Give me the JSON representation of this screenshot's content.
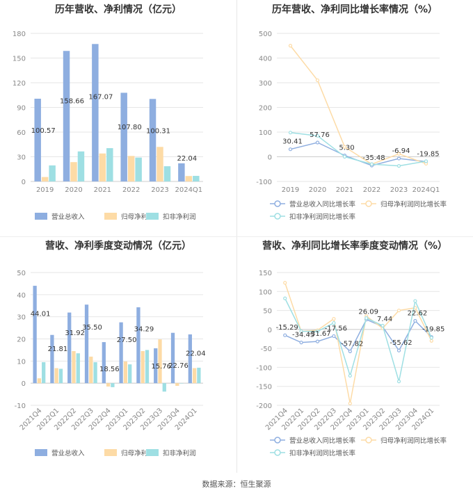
{
  "source": "数据来源：恒生聚源",
  "colors": {
    "rev": "#8eaee0",
    "np": "#fddba6",
    "dnp": "#9edfe3",
    "axis": "#888888",
    "grid": "#e6e6e6",
    "label": "#333333"
  },
  "chart_data": [
    {
      "id": "c1",
      "type": "bar",
      "title": "历年营收、净利情况（亿元）",
      "categories": [
        "2019",
        "2020",
        "2021",
        "2022",
        "2023",
        "2024Q1"
      ],
      "ylim": [
        0,
        180
      ],
      "yticks": [
        0,
        30,
        60,
        90,
        120,
        150,
        180
      ],
      "series": [
        {
          "name": "营业总收入",
          "colorKey": "rev",
          "values": [
            100.57,
            158.66,
            167.07,
            107.8,
            100.31,
            22.04
          ],
          "labels": [
            "100.57",
            "158.66",
            "167.07",
            "107.80",
            "100.31",
            "22.04"
          ]
        },
        {
          "name": "归母净利润",
          "colorKey": "np",
          "values": [
            5.4,
            23.5,
            34.0,
            31.0,
            42.0,
            6.6
          ]
        },
        {
          "name": "扣非净利润",
          "colorKey": "dnp",
          "values": [
            19.5,
            36.5,
            40.5,
            29.0,
            18.5,
            6.8
          ]
        }
      ]
    },
    {
      "id": "c2",
      "type": "line",
      "title": "历年营收、净利同比增长率情况（%）",
      "categories": [
        "2019",
        "2020",
        "2021",
        "2022",
        "2023",
        "2024Q1"
      ],
      "ylim": [
        -100,
        500
      ],
      "yticks": [
        -100,
        0,
        100,
        200,
        300,
        400,
        500
      ],
      "series": [
        {
          "name": "营业总收入同比增长率",
          "colorKey": "rev",
          "values": [
            30.41,
            57.76,
            5.3,
            -35.48,
            -6.94,
            -19.85
          ],
          "labels": [
            "30.41",
            "57.76",
            "5.30",
            "-35.48",
            "-6.94",
            "-19.85"
          ]
        },
        {
          "name": "归母净利润同比增长率",
          "colorKey": "np",
          "values": [
            450,
            310,
            40,
            -30,
            12,
            -28
          ]
        },
        {
          "name": "扣非净利润同比增长率",
          "colorKey": "dnp",
          "values": [
            98,
            85,
            0,
            -30,
            -37,
            -18
          ]
        }
      ]
    },
    {
      "id": "c3",
      "type": "bar",
      "title": "营收、净利季度变动情况（亿元）",
      "categories": [
        "2021Q4",
        "2022Q1",
        "2022Q2",
        "2022Q3",
        "2022Q4",
        "2023Q1",
        "2023Q2",
        "2023Q3",
        "2023Q4",
        "2024Q1"
      ],
      "ylim": [
        -10,
        50
      ],
      "yticks": [
        -10,
        0,
        10,
        20,
        30,
        40,
        50
      ],
      "series": [
        {
          "name": "营业总收入",
          "colorKey": "rev",
          "values": [
            44.01,
            21.81,
            31.92,
            35.5,
            18.56,
            27.5,
            34.29,
            15.76,
            22.76,
            22.04
          ],
          "labels": [
            "44.01",
            "21.81",
            "31.92",
            "35.50",
            "18.56",
            "27.50",
            "34.29",
            "15.76",
            "22.76",
            "22.04"
          ]
        },
        {
          "name": "归母净利润",
          "colorKey": "np",
          "values": [
            2.2,
            6.8,
            14.5,
            12.0,
            -1.5,
            9.8,
            14.5,
            19.8,
            -1.2,
            6.8
          ]
        },
        {
          "name": "扣非净利润",
          "colorKey": "dnp",
          "values": [
            9.5,
            6.5,
            13.5,
            9.5,
            -1.8,
            8.5,
            15.0,
            -3.8,
            0.0,
            7.0
          ]
        }
      ]
    },
    {
      "id": "c4",
      "type": "line",
      "title": "营收、净利同比增长率季度变动情况（%）",
      "categories": [
        "2021Q4",
        "2022Q1",
        "2022Q2",
        "2022Q3",
        "2022Q4",
        "2023Q1",
        "2023Q2",
        "2023Q3",
        "2023Q4",
        "2024Q1"
      ],
      "ylim": [
        -200,
        150
      ],
      "yticks": [
        -200,
        -150,
        -100,
        -50,
        0,
        50,
        100,
        150
      ],
      "series": [
        {
          "name": "营业总收入同比增长率",
          "colorKey": "rev",
          "values": [
            -15.29,
            -34.45,
            -31.67,
            -17.56,
            -57.82,
            26.09,
            7.44,
            -55.62,
            22.62,
            -19.85
          ],
          "labels": [
            "-15.29",
            "-34.45",
            "-31.67",
            "-17.56",
            "-57.82",
            "26.09",
            "7.44",
            "-55.62",
            "22.62",
            "-19.85"
          ]
        },
        {
          "name": "归母净利润同比增长率",
          "colorKey": "np",
          "values": [
            123,
            -5,
            -2,
            28,
            -195,
            35,
            3,
            50,
            57,
            -30
          ]
        },
        {
          "name": "扣非净利润同比增长率",
          "colorKey": "dnp",
          "values": [
            82,
            -5,
            -5,
            17,
            -122,
            30,
            10,
            -137,
            75,
            -22
          ]
        }
      ]
    }
  ]
}
